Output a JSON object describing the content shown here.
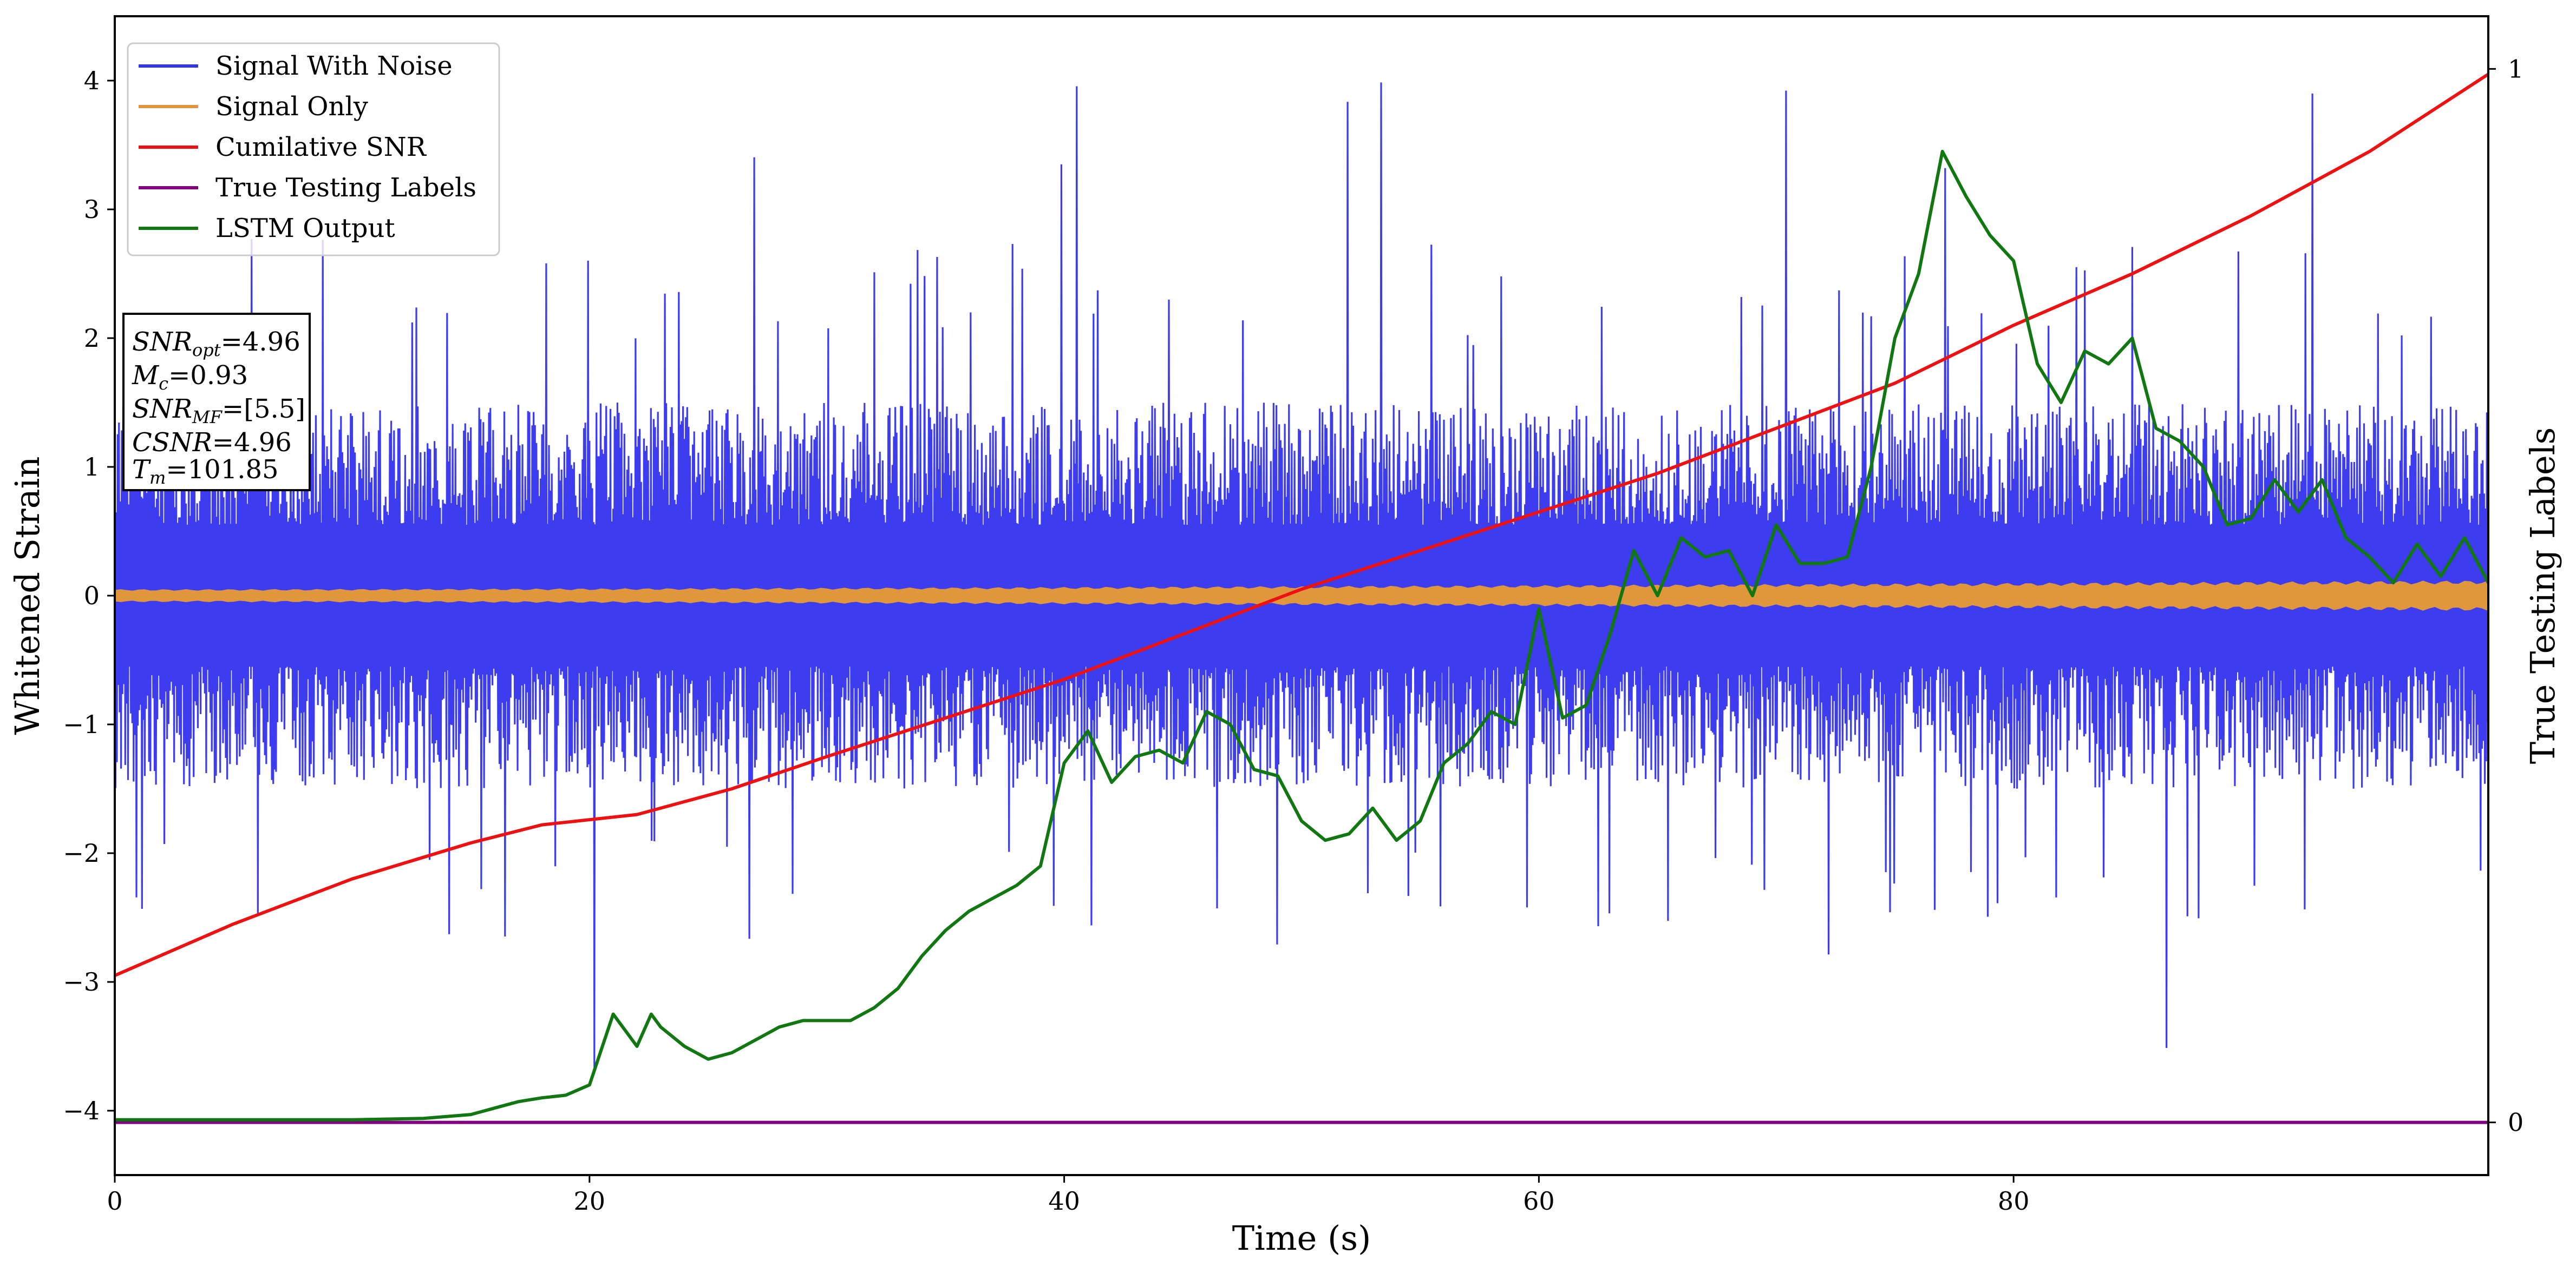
{
  "chart_data": {
    "type": "line",
    "xlabel": "Time (s)",
    "ylabel": "Whitened Strain",
    "y2label": "True Testing Labels",
    "xlim": [
      0,
      100
    ],
    "ylim": [
      -4.5,
      4.5
    ],
    "y2lim": [
      -0.05,
      1.05
    ],
    "xticks": [
      0,
      20,
      40,
      60,
      80
    ],
    "yticks": [
      -4,
      -3,
      -2,
      -1,
      0,
      1,
      2,
      3,
      4
    ],
    "y2ticks": [
      0,
      1
    ],
    "grid": false,
    "legend_position": "top-left",
    "series": [
      {
        "name": "Signal With Noise",
        "color": "#3333ee",
        "kind": "noise",
        "amplitude_range": [
          -4.05,
          4.15
        ]
      },
      {
        "name": "Signal Only",
        "color": "#e0963c",
        "kind": "band",
        "amplitude_start": 0.04,
        "amplitude_end": 0.1
      },
      {
        "name": "Cumilative SNR",
        "color": "#ee1111",
        "axis": "y",
        "x": [
          0,
          5,
          10,
          15,
          18,
          22,
          26,
          30,
          35,
          40,
          45,
          50,
          55,
          60,
          65,
          70,
          75,
          80,
          85,
          90,
          95,
          100
        ],
        "y": [
          -2.95,
          -2.55,
          -2.2,
          -1.92,
          -1.78,
          -1.7,
          -1.5,
          -1.25,
          -0.95,
          -0.65,
          -0.3,
          0.05,
          0.35,
          0.65,
          0.95,
          1.3,
          1.65,
          2.1,
          2.5,
          2.95,
          3.45,
          4.05
        ]
      },
      {
        "name": "True Testing Labels",
        "color": "#800080",
        "axis": "y2",
        "x": [
          0,
          100
        ],
        "y": [
          0,
          0
        ]
      },
      {
        "name": "LSTM Output",
        "color": "#117711",
        "axis": "y",
        "x": [
          0,
          10,
          13,
          15,
          16,
          17,
          18,
          19,
          20,
          21,
          22,
          22.6,
          23,
          24,
          25,
          26,
          27,
          28,
          29,
          30,
          31,
          32,
          33,
          34,
          35,
          36,
          37,
          38,
          39,
          40,
          41,
          42,
          43,
          44,
          45,
          46,
          47,
          48,
          49,
          50,
          51,
          52,
          53,
          54,
          55,
          56,
          57,
          58,
          59,
          60,
          61,
          62,
          63,
          64,
          65,
          66,
          67,
          68,
          69,
          70,
          71,
          72,
          73,
          74,
          75,
          76,
          77,
          78,
          79,
          80,
          81,
          82,
          83,
          84,
          85,
          86,
          87,
          88,
          89,
          90,
          91,
          92,
          93,
          94,
          95,
          96,
          97,
          98,
          99,
          100
        ],
        "y": [
          -4.07,
          -4.07,
          -4.06,
          -4.03,
          -3.98,
          -3.93,
          -3.9,
          -3.88,
          -3.8,
          -3.25,
          -3.5,
          -3.25,
          -3.35,
          -3.5,
          -3.6,
          -3.55,
          -3.45,
          -3.35,
          -3.3,
          -3.3,
          -3.3,
          -3.2,
          -3.05,
          -2.8,
          -2.6,
          -2.45,
          -2.35,
          -2.25,
          -2.1,
          -1.3,
          -1.05,
          -1.45,
          -1.25,
          -1.2,
          -1.3,
          -0.9,
          -1.0,
          -1.35,
          -1.4,
          -1.75,
          -1.9,
          -1.85,
          -1.65,
          -1.9,
          -1.75,
          -1.3,
          -1.15,
          -0.9,
          -1.0,
          -0.1,
          -0.95,
          -0.85,
          -0.3,
          0.35,
          0.0,
          0.45,
          0.3,
          0.35,
          0.0,
          0.55,
          0.25,
          0.25,
          0.3,
          1.0,
          2.0,
          2.5,
          3.45,
          3.1,
          2.8,
          2.6,
          1.8,
          1.5,
          1.9,
          1.8,
          2.0,
          1.3,
          1.2,
          1.0,
          0.55,
          0.6,
          0.9,
          0.65,
          0.9,
          0.45,
          0.3,
          0.1,
          0.4,
          0.15,
          0.45,
          0.1
        ]
      }
    ],
    "annotation_lines": [
      "SNR_opt=4.96",
      "M_c=0.93",
      "SNR_MF=[5.5]",
      "CSNR=4.96",
      "T_m=101.85"
    ],
    "annotation": {
      "line1": {
        "base": "SNR",
        "sub": "opt",
        "value": "=4.96"
      },
      "line2": {
        "base": "M",
        "sub": "c",
        "value": "=0.93"
      },
      "line3": {
        "base": "SNR",
        "sub": "MF",
        "value": "=[5.5]"
      },
      "line4": {
        "base": "CSNR",
        "sub": "",
        "value": "=4.96"
      },
      "line5": {
        "base": "T",
        "sub": "m",
        "value": "=101.85"
      }
    }
  }
}
